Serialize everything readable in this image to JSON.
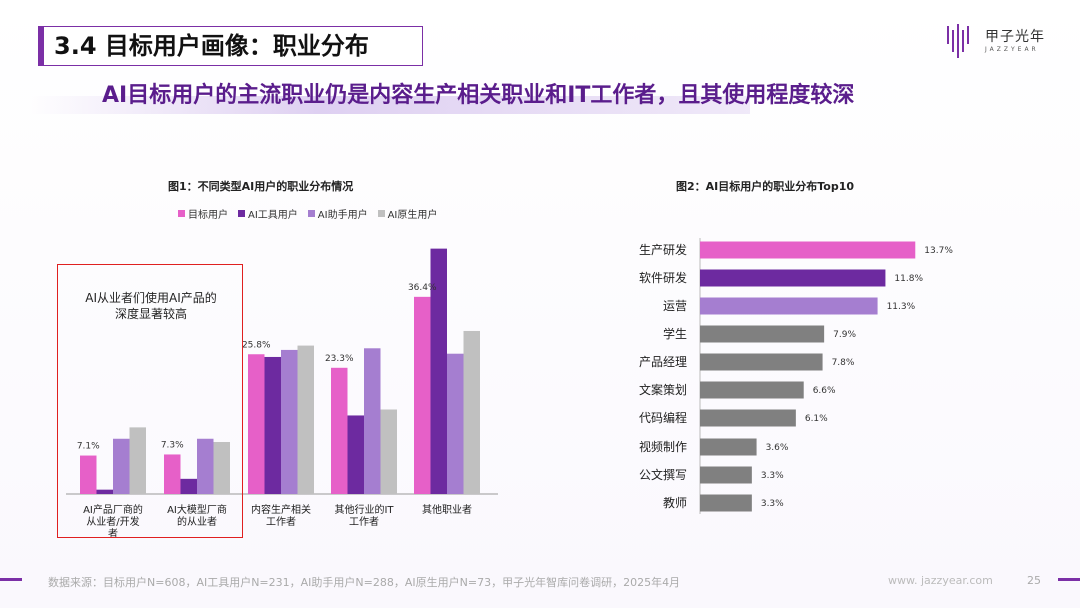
{
  "header": {
    "title": "3.4 目标用户画像：职业分布",
    "subtitle": "AI目标用户的主流职业仍是内容生产相关职业和IT工作者，且其使用程度较深",
    "logo_name": "甲子光年",
    "logo_sub": "JAZZYEAR"
  },
  "callout": {
    "text_line1": "AI从业者们使用AI产品的",
    "text_line2": "深度显著较高"
  },
  "colors": {
    "pink": "#e660c8",
    "dark_purple": "#6d2aa0",
    "light_purple": "#a57ed0",
    "gray": "#c0c0c0",
    "bar_gray": "#808080"
  },
  "chart_data": [
    {
      "type": "bar",
      "title": "图1：不同类型AI用户的职业分布情况",
      "categories": [
        "AI产品厂商的从业者/开发者",
        "AI大模型厂商的从业者",
        "内容生产相关工作者",
        "其他行业的IT工作者",
        "其他职业者"
      ],
      "category_lines": [
        [
          "AI产品厂商的",
          "从业者/开发",
          "者"
        ],
        [
          "AI大模型厂商",
          "的从业者"
        ],
        [
          "内容生产相关",
          "工作者"
        ],
        [
          "其他行业的IT",
          "工作者"
        ],
        [
          "其他职业者"
        ]
      ],
      "series": [
        {
          "name": "目标用户",
          "color": "#e660c8",
          "values": [
            7.1,
            7.3,
            25.8,
            23.3,
            36.4
          ]
        },
        {
          "name": "AI工具用户",
          "color": "#6d2aa0",
          "values": [
            0.8,
            2.8,
            25.3,
            14.5,
            45.3
          ]
        },
        {
          "name": "AI助手用户",
          "color": "#a57ed0",
          "values": [
            10.2,
            10.2,
            26.6,
            26.9,
            25.9
          ]
        },
        {
          "name": "AI原生用户",
          "color": "#c0c0c0",
          "values": [
            12.3,
            9.6,
            27.4,
            15.6,
            30.1
          ]
        }
      ],
      "data_labels": [
        "7.1%",
        "7.3%",
        "25.8%",
        "23.3%",
        "36.4%"
      ],
      "ylim": [
        0,
        48
      ],
      "legend": "top"
    },
    {
      "type": "bar",
      "orientation": "horizontal",
      "title": "图2：AI目标用户的职业分布Top10",
      "categories": [
        "生产研发",
        "软件研发",
        "运营",
        "学生",
        "产品经理",
        "文案策划",
        "代码编程",
        "视频制作",
        "公文撰写",
        "教师"
      ],
      "values": [
        13.7,
        11.8,
        11.3,
        7.9,
        7.8,
        6.6,
        6.1,
        3.6,
        3.3,
        3.3
      ],
      "labels": [
        "13.7%",
        "11.8%",
        "11.3%",
        "7.9%",
        "7.8%",
        "6.6%",
        "6.1%",
        "3.6%",
        "3.3%",
        "3.3%"
      ],
      "bar_colors": [
        "#e660c8",
        "#6d2aa0",
        "#a57ed0",
        "#808080",
        "#808080",
        "#808080",
        "#808080",
        "#808080",
        "#808080",
        "#808080"
      ],
      "xlim": [
        0,
        14
      ]
    }
  ],
  "footer": {
    "source": "数据来源：目标用户N=608，AI工具用户N=231，AI助手用户N=288，AI原生用户N=73，甲子光年智库问卷调研，2025年4月",
    "website": "www. jazzyear.com",
    "page": "25"
  }
}
